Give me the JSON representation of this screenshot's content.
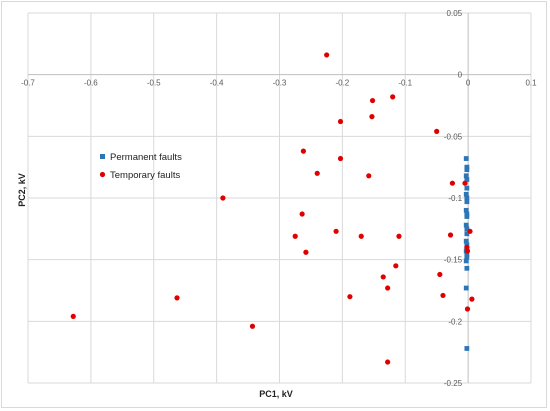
{
  "chart_data": {
    "type": "scatter",
    "xlabel": "PC1, kV",
    "ylabel": "PC2, kV",
    "xlim": [
      -0.7,
      0.1
    ],
    "ylim": [
      -0.25,
      0.05
    ],
    "x_ticks": [
      -0.7,
      -0.6,
      -0.5,
      -0.4,
      -0.3,
      -0.2,
      -0.1,
      0,
      0.1
    ],
    "x_tick_labels": [
      "-0.7",
      "-0.6",
      "-0.5",
      "-0.4",
      "-0.3",
      "-0.2",
      "-0.1",
      "0",
      "0.1"
    ],
    "y_ticks": [
      0.05,
      0,
      -0.05,
      -0.1,
      -0.15,
      -0.2,
      -0.25
    ],
    "y_tick_labels": [
      "0.05",
      "0",
      "-0.05",
      "-0.1",
      "-0.15",
      "-0.2",
      "-0.25"
    ],
    "grid": true,
    "legend_position": "left",
    "series": [
      {
        "name": "Permanent faults",
        "marker": "square",
        "color": "#2e75b6",
        "points": [
          [
            -0.003,
            -0.068
          ],
          [
            -0.002,
            -0.075
          ],
          [
            -0.002,
            -0.077
          ],
          [
            -0.003,
            -0.082
          ],
          [
            -0.002,
            -0.085
          ],
          [
            -0.002,
            -0.092
          ],
          [
            -0.003,
            -0.097
          ],
          [
            -0.002,
            -0.1
          ],
          [
            -0.002,
            -0.103
          ],
          [
            -0.003,
            -0.11
          ],
          [
            -0.002,
            -0.113
          ],
          [
            -0.002,
            -0.115
          ],
          [
            -0.003,
            -0.122
          ],
          [
            -0.002,
            -0.125
          ],
          [
            -0.002,
            -0.129
          ],
          [
            -0.003,
            -0.135
          ],
          [
            -0.002,
            -0.138
          ],
          [
            -0.002,
            -0.141
          ],
          [
            -0.003,
            -0.143
          ],
          [
            -0.002,
            -0.146
          ],
          [
            -0.002,
            -0.148
          ],
          [
            -0.003,
            -0.151
          ],
          [
            -0.002,
            -0.157
          ],
          [
            -0.003,
            -0.173
          ],
          [
            -0.002,
            -0.222
          ]
        ]
      },
      {
        "name": "Temporary faults",
        "marker": "circle",
        "color": "#e00000",
        "points": [
          [
            -0.225,
            0.016
          ],
          [
            -0.152,
            -0.021
          ],
          [
            -0.12,
            -0.018
          ],
          [
            -0.153,
            -0.034
          ],
          [
            -0.203,
            -0.038
          ],
          [
            -0.05,
            -0.046
          ],
          [
            -0.262,
            -0.062
          ],
          [
            -0.203,
            -0.068
          ],
          [
            -0.24,
            -0.08
          ],
          [
            -0.158,
            -0.082
          ],
          [
            -0.025,
            -0.088
          ],
          [
            -0.005,
            -0.088
          ],
          [
            -0.39,
            -0.1
          ],
          [
            -0.264,
            -0.113
          ],
          [
            -0.21,
            -0.127
          ],
          [
            -0.275,
            -0.131
          ],
          [
            -0.17,
            -0.131
          ],
          [
            -0.11,
            -0.131
          ],
          [
            -0.028,
            -0.13
          ],
          [
            0.003,
            -0.127
          ],
          [
            -0.002,
            -0.14
          ],
          [
            -0.001,
            -0.143
          ],
          [
            -0.258,
            -0.144
          ],
          [
            -0.045,
            -0.162
          ],
          [
            -0.135,
            -0.164
          ],
          [
            -0.115,
            -0.155
          ],
          [
            -0.463,
            -0.181
          ],
          [
            -0.188,
            -0.18
          ],
          [
            -0.128,
            -0.173
          ],
          [
            -0.04,
            -0.179
          ],
          [
            0.006,
            -0.182
          ],
          [
            -0.001,
            -0.19
          ],
          [
            -0.628,
            -0.196
          ],
          [
            -0.343,
            -0.204
          ],
          [
            -0.128,
            -0.233
          ]
        ]
      }
    ]
  }
}
